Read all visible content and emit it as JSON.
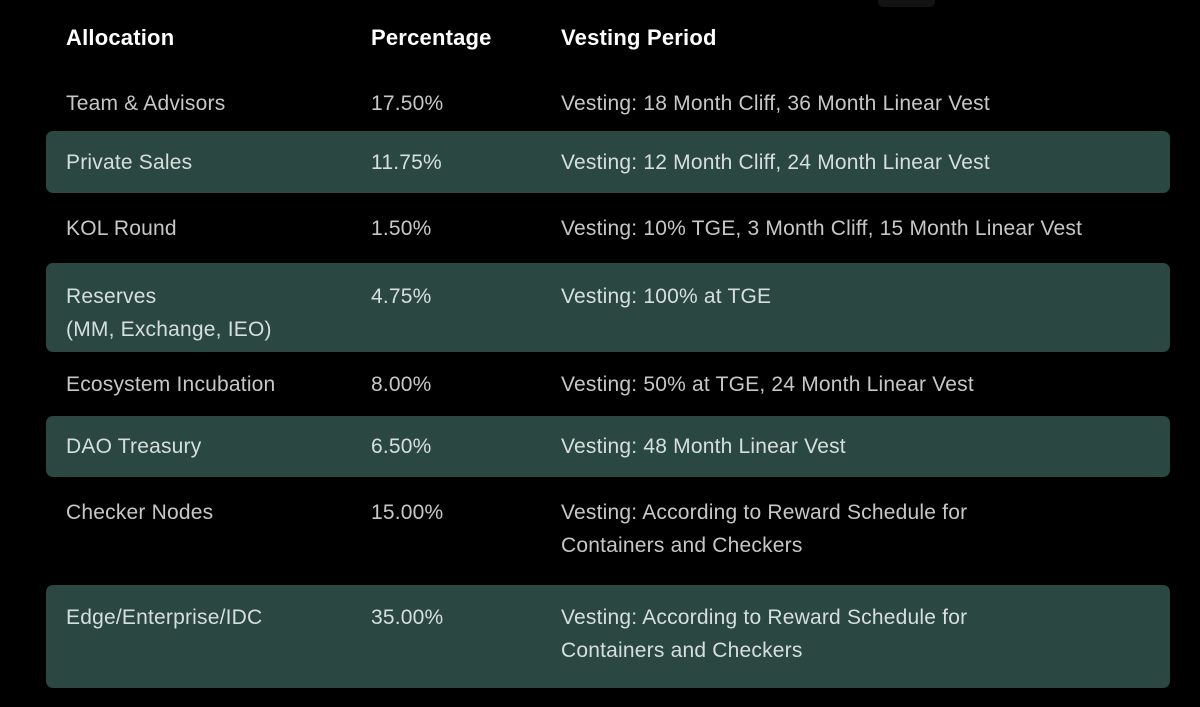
{
  "page": {
    "background_color": "#000000",
    "row_highlight_color": "#2b4741",
    "header_text_color": "#ffffff",
    "body_text_color": "#c7c7c7",
    "highlight_text_color": "#d6dfdb"
  },
  "chart_data": {
    "type": "table",
    "columns": [
      "Allocation",
      "Percentage",
      "Vesting Period"
    ],
    "rows": [
      {
        "allocation": "Team & Advisors",
        "percentage": "17.50%",
        "vesting": "Vesting: 18 Month Cliff, 36 Month Linear Vest",
        "highlighted": false
      },
      {
        "allocation": "Private Sales",
        "percentage": "11.75%",
        "vesting": "Vesting: 12 Month Cliff, 24 Month Linear Vest",
        "highlighted": true
      },
      {
        "allocation": "KOL Round",
        "percentage": "1.50%",
        "vesting": "Vesting: 10% TGE, 3 Month Cliff, 15 Month Linear Vest",
        "highlighted": false
      },
      {
        "allocation": "Reserves\n(MM, Exchange, IEO)",
        "percentage": "4.75%",
        "vesting": "Vesting: 100% at TGE",
        "highlighted": true
      },
      {
        "allocation": "Ecosystem Incubation",
        "percentage": "8.00%",
        "vesting": "Vesting: 50% at TGE, 24 Month Linear Vest",
        "highlighted": false
      },
      {
        "allocation": "DAO Treasury",
        "percentage": "6.50%",
        "vesting": "Vesting: 48 Month Linear Vest",
        "highlighted": true
      },
      {
        "allocation": "Checker Nodes",
        "percentage": "15.00%",
        "vesting": "Vesting: According to Reward Schedule for\nContainers and Checkers",
        "highlighted": false
      },
      {
        "allocation": "Edge/Enterprise/IDC",
        "percentage": "35.00%",
        "vesting": "Vesting: According to Reward Schedule for\nContainers and Checkers",
        "highlighted": true
      }
    ]
  }
}
